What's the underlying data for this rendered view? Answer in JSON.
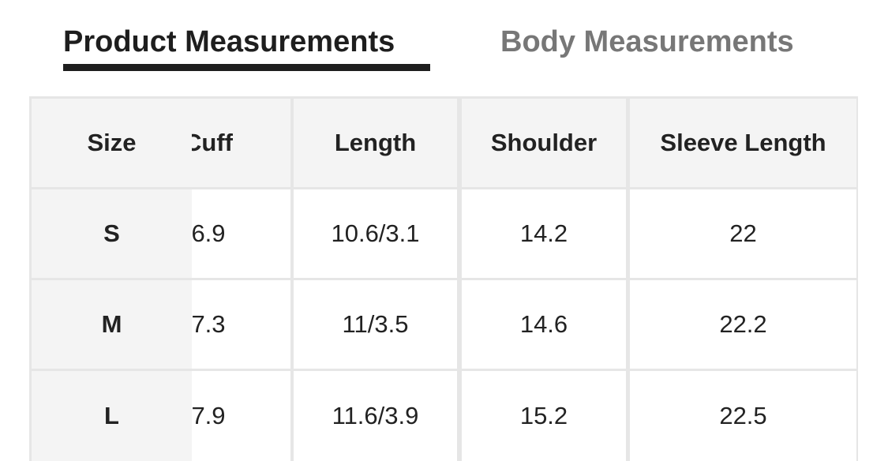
{
  "tabs": [
    {
      "label": "Product Measurements",
      "active": true
    },
    {
      "label": "Body Measurements",
      "active": false
    }
  ],
  "table": {
    "headers": [
      "Size",
      "Cuff",
      "Length",
      "Shoulder",
      "Sleeve Length"
    ],
    "rows": [
      [
        "S",
        "6.9",
        "10.6/3.1",
        "14.2",
        "22"
      ],
      [
        "M",
        "7.3",
        "11/3.5",
        "14.6",
        "22.2"
      ],
      [
        "L",
        "7.9",
        "11.6/3.9",
        "15.2",
        "22.5"
      ]
    ]
  }
}
